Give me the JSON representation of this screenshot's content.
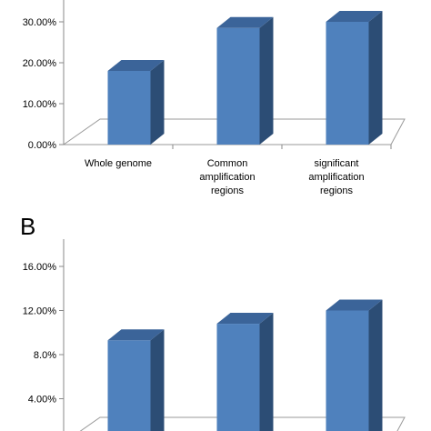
{
  "chart_data": [
    {
      "type": "bar3d",
      "categories": [
        "Whole genome",
        "Common\namplification\nregions",
        "significant\namplification\nregions"
      ],
      "values": [
        18,
        28.5,
        30
      ],
      "color": "#4f81bd",
      "ylim": [
        0,
        35
      ],
      "yticks": [
        {
          "value": 0,
          "label": "0.00%"
        },
        {
          "value": 10,
          "label": "10.00%"
        },
        {
          "value": 20,
          "label": "20.00%"
        },
        {
          "value": 30,
          "label": "30.00%"
        }
      ]
    },
    {
      "type": "bar3d",
      "panel_label": "B",
      "categories": [
        null,
        null,
        null
      ],
      "values": [
        9.3,
        10.8,
        12
      ],
      "color": "#4f81bd",
      "ylim": [
        0,
        16
      ],
      "yticks": [
        {
          "value": 4,
          "label": "4.00%"
        },
        {
          "value": 8,
          "label": "8.0%"
        },
        {
          "value": 12,
          "label": "12.00%"
        },
        {
          "value": 16,
          "label": "16.00%"
        }
      ]
    }
  ]
}
